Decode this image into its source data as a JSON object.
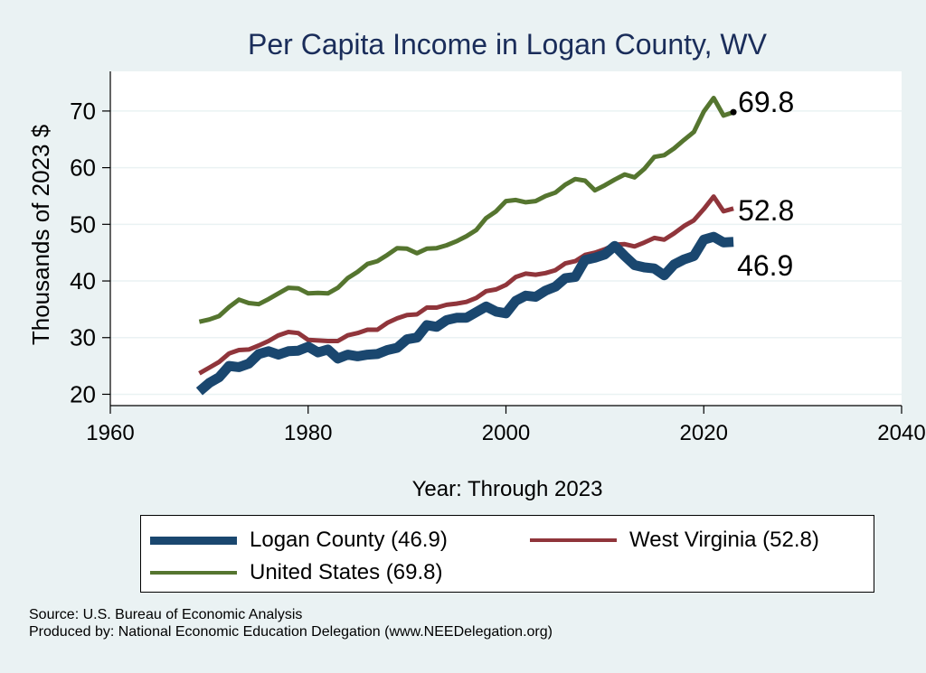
{
  "chart_data": {
    "type": "line",
    "title": "Per Capita Income in Logan County, WV",
    "xlabel": "Year: Through 2023",
    "ylabel": "Thousands of 2023 $",
    "xlim": [
      1960,
      2040
    ],
    "ylim": [
      18,
      77
    ],
    "xticks": [
      "1960",
      "1980",
      "2000",
      "2020",
      "2040"
    ],
    "yticks": [
      "20",
      "30",
      "40",
      "50",
      "60",
      "70"
    ],
    "grid": true,
    "legend_position": "bottom",
    "x": [
      1969,
      1970,
      1971,
      1972,
      1973,
      1974,
      1975,
      1976,
      1977,
      1978,
      1979,
      1980,
      1981,
      1982,
      1983,
      1984,
      1985,
      1986,
      1987,
      1988,
      1989,
      1990,
      1991,
      1992,
      1993,
      1994,
      1995,
      1996,
      1997,
      1998,
      1999,
      2000,
      2001,
      2002,
      2003,
      2004,
      2005,
      2006,
      2007,
      2008,
      2009,
      2010,
      2011,
      2012,
      2013,
      2014,
      2015,
      2016,
      2017,
      2018,
      2019,
      2020,
      2021,
      2022,
      2023
    ],
    "series": [
      {
        "name": "Logan County (46.9)",
        "color": "#1a476f",
        "end_label": "46.9",
        "values": [
          20.5,
          22,
          23,
          25,
          24.8,
          25.4,
          27.1,
          27.6,
          27,
          27.6,
          27.7,
          28.4,
          27.4,
          27.9,
          26.3,
          27,
          26.7,
          27,
          27.1,
          27.8,
          28.2,
          29.7,
          30,
          32.2,
          31.9,
          33.1,
          33.5,
          33.5,
          34.5,
          35.5,
          34.6,
          34.3,
          36.5,
          37.4,
          37.2,
          38.3,
          39,
          40.5,
          40.7,
          43.7,
          44.1,
          44.7,
          46.2,
          44.4,
          42.8,
          42.4,
          42.2,
          41,
          42.9,
          43.8,
          44.4,
          47.3,
          47.8,
          46.8,
          46.9
        ]
      },
      {
        "name": "West Virginia (52.8)",
        "color": "#90353b",
        "end_label": "52.8",
        "values": [
          23.7,
          24.7,
          25.7,
          27.2,
          27.8,
          27.9,
          28.6,
          29.4,
          30.4,
          31,
          30.8,
          29.6,
          29.5,
          29.4,
          29.4,
          30.4,
          30.8,
          31.4,
          31.4,
          32.6,
          33.4,
          34,
          34.1,
          35.3,
          35.3,
          35.8,
          36,
          36.3,
          37,
          38.2,
          38.5,
          39.3,
          40.7,
          41.3,
          41.1,
          41.4,
          41.9,
          43.1,
          43.5,
          44.6,
          45,
          45.6,
          46.4,
          46.5,
          46.1,
          46.8,
          47.6,
          47.3,
          48.4,
          49.7,
          50.7,
          52.7,
          54.9,
          52.3,
          52.8
        ]
      },
      {
        "name": "United States (69.8)",
        "color": "#55752f",
        "end_label": "69.8",
        "values": [
          32.8,
          33.2,
          33.8,
          35.4,
          36.7,
          36.1,
          35.9,
          36.8,
          37.8,
          38.8,
          38.7,
          37.8,
          37.9,
          37.8,
          38.8,
          40.5,
          41.6,
          43,
          43.5,
          44.6,
          45.8,
          45.7,
          44.9,
          45.7,
          45.8,
          46.3,
          47,
          47.9,
          49,
          51.1,
          52.3,
          54.1,
          54.3,
          53.9,
          54.1,
          55,
          55.6,
          57,
          58,
          57.7,
          56,
          56.9,
          57.9,
          58.8,
          58.3,
          59.8,
          61.9,
          62.2,
          63.4,
          64.9,
          66.3,
          69.9,
          72.3,
          69.2,
          69.8
        ]
      }
    ]
  },
  "notes": {
    "source": "Source: U.S. Bureau of Economic Analysis",
    "producer": "Produced by: National Economic Education Delegation (www.NEEDelegation.org)"
  }
}
